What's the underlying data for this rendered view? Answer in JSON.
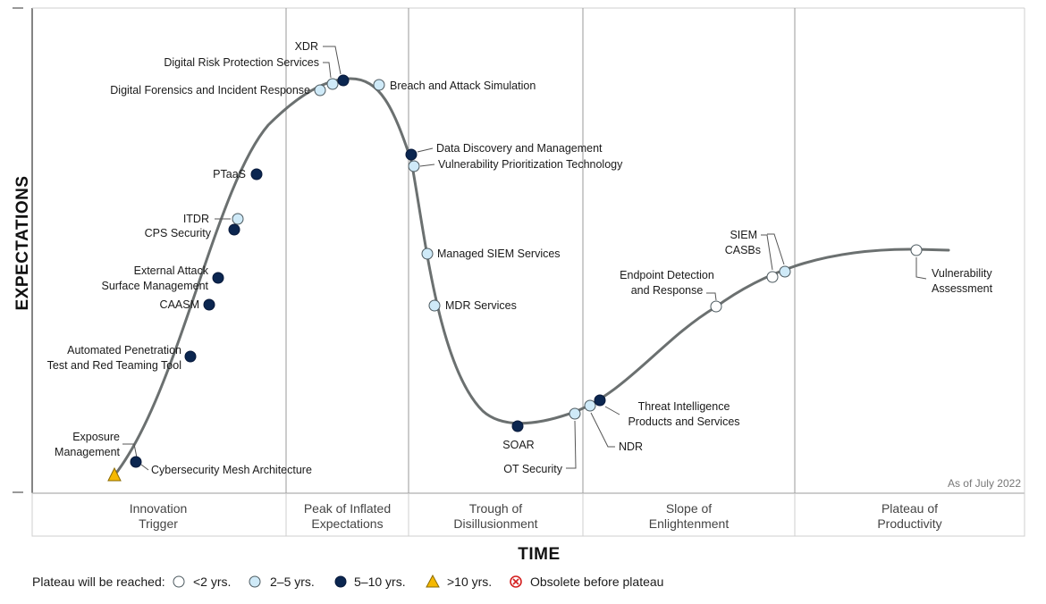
{
  "chart_data": {
    "type": "hype-cycle",
    "y_axis_label": "EXPECTATIONS",
    "x_axis_label": "TIME",
    "as_of": "As of July 2022",
    "phases": [
      {
        "line1": "Innovation",
        "line2": "Trigger"
      },
      {
        "line1": "Peak of Inflated",
        "line2": "Expectations"
      },
      {
        "line1": "Trough of",
        "line2": "Disillusionment"
      },
      {
        "line1": "Slope of",
        "line2": "Enlightenment"
      },
      {
        "line1": "Plateau of",
        "line2": "Productivity"
      }
    ],
    "legend": {
      "title": "Plateau will be reached:",
      "items": [
        {
          "key": "lt2",
          "label": "<2 yrs.",
          "marker": "white-circle"
        },
        {
          "key": "2to5",
          "label": "2–5 yrs.",
          "marker": "light-blue-circle"
        },
        {
          "key": "5to10",
          "label": "5–10 yrs.",
          "marker": "navy-circle"
        },
        {
          "key": "gt10",
          "label": ">10 yrs.",
          "marker": "yellow-triangle"
        },
        {
          "key": "obsolete",
          "label": "Obsolete before plateau",
          "marker": "red-x-circle"
        }
      ]
    },
    "technologies": [
      {
        "name": "Exposure Management",
        "lines": [
          "Exposure",
          "Management"
        ],
        "category": "gt10"
      },
      {
        "name": "Cybersecurity Mesh Architecture",
        "lines": [
          "Cybersecurity Mesh Architecture"
        ],
        "category": "5to10"
      },
      {
        "name": "Automated Penetration Test and Red Teaming Tool",
        "lines": [
          "Automated Penetration",
          "Test and Red Teaming Tool"
        ],
        "category": "5to10"
      },
      {
        "name": "CAASM",
        "lines": [
          "CAASM"
        ],
        "category": "5to10"
      },
      {
        "name": "External Attack Surface Management",
        "lines": [
          "External Attack",
          "Surface Management"
        ],
        "category": "5to10"
      },
      {
        "name": "CPS Security",
        "lines": [
          "CPS Security"
        ],
        "category": "5to10"
      },
      {
        "name": "ITDR",
        "lines": [
          "ITDR"
        ],
        "category": "2to5"
      },
      {
        "name": "PTaaS",
        "lines": [
          "PTaaS"
        ],
        "category": "5to10"
      },
      {
        "name": "Digital Forensics and Incident Response",
        "lines": [
          "Digital Forensics and Incident Response"
        ],
        "category": "2to5"
      },
      {
        "name": "Digital Risk Protection Services",
        "lines": [
          "Digital Risk Protection Services"
        ],
        "category": "2to5"
      },
      {
        "name": "XDR",
        "lines": [
          "XDR"
        ],
        "category": "5to10"
      },
      {
        "name": "Breach and Attack Simulation",
        "lines": [
          "Breach and Attack Simulation"
        ],
        "category": "2to5"
      },
      {
        "name": "Data Discovery and Management",
        "lines": [
          "Data Discovery and Management"
        ],
        "category": "5to10"
      },
      {
        "name": "Vulnerability Prioritization Technology",
        "lines": [
          "Vulnerability Prioritization Technology"
        ],
        "category": "2to5"
      },
      {
        "name": "Managed SIEM Services",
        "lines": [
          "Managed SIEM Services"
        ],
        "category": "2to5"
      },
      {
        "name": "MDR Services",
        "lines": [
          "MDR Services"
        ],
        "category": "2to5"
      },
      {
        "name": "SOAR",
        "lines": [
          "SOAR"
        ],
        "category": "5to10"
      },
      {
        "name": "OT Security",
        "lines": [
          "OT Security"
        ],
        "category": "2to5"
      },
      {
        "name": "NDR",
        "lines": [
          "NDR"
        ],
        "category": "2to5"
      },
      {
        "name": "Threat Intelligence Products and Services",
        "lines": [
          "Threat Intelligence",
          "Products and Services"
        ],
        "category": "5to10"
      },
      {
        "name": "Endpoint Detection and Response",
        "lines": [
          "Endpoint Detection",
          "and Response"
        ],
        "category": "lt2"
      },
      {
        "name": "SIEM",
        "lines": [
          "SIEM"
        ],
        "category": "lt2"
      },
      {
        "name": "CASBs",
        "lines": [
          "CASBs"
        ],
        "category": "2to5"
      },
      {
        "name": "Vulnerability Assessment",
        "lines": [
          "Vulnerability",
          "Assessment"
        ],
        "category": "lt2"
      }
    ]
  },
  "colors": {
    "curve": "#6b7070",
    "lt2": "#ffffff",
    "2to5": "#cfeaf8",
    "5to10": "#0b2650",
    "gt10": "#f5b800",
    "obsolete": "#d42020",
    "grid": "#9a9a9a"
  }
}
